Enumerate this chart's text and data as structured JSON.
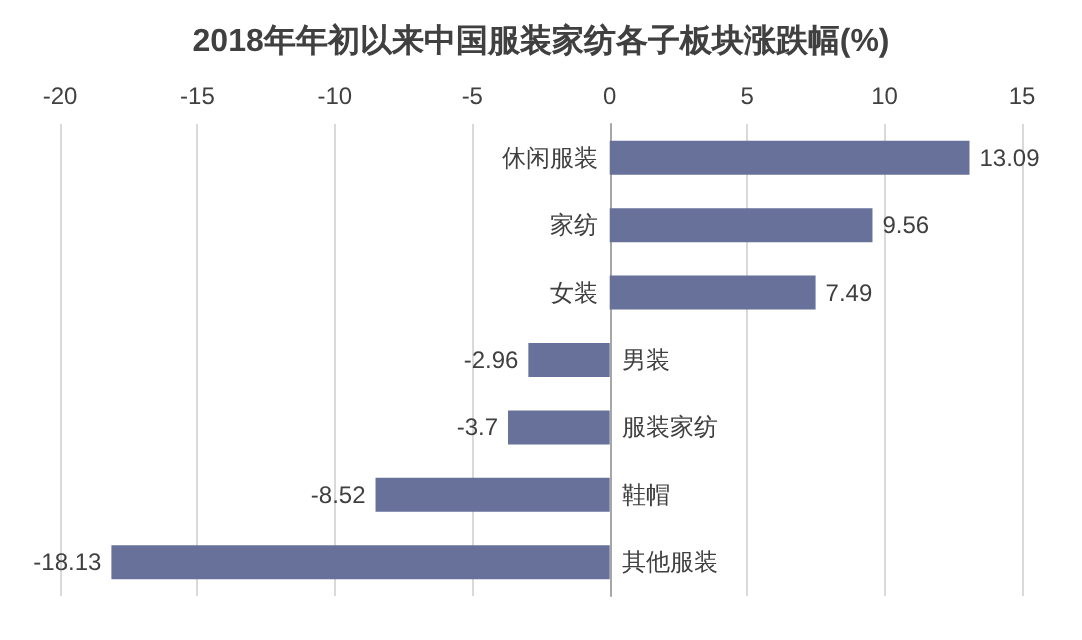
{
  "chart_data": {
    "type": "bar",
    "orientation": "horizontal",
    "title": "2018年年初以来中国服装家纺各子板块涨跌幅(%)",
    "categories": [
      "休闲服装",
      "家纺",
      "女装",
      "男装",
      "服装家纺",
      "鞋帽",
      "其他服装"
    ],
    "values": [
      13.09,
      9.56,
      7.49,
      -2.96,
      -3.7,
      -8.52,
      -18.13
    ],
    "color": "#67719a",
    "xlim": [
      -20,
      15
    ],
    "xticks": [
      -20,
      -15,
      -10,
      -5,
      0,
      5,
      10,
      15
    ],
    "grid": "x",
    "data_labels": true
  }
}
